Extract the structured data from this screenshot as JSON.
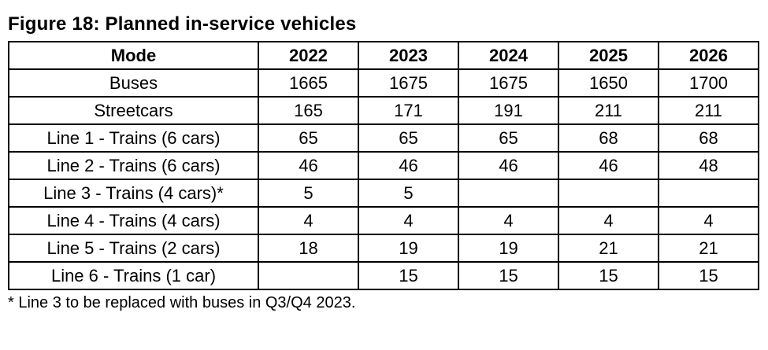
{
  "title": "Figure 18: Planned in-service vehicles",
  "table": {
    "columns": [
      "Mode",
      "2022",
      "2023",
      "2024",
      "2025",
      "2026"
    ],
    "rows": [
      {
        "mode": "Buses",
        "values": [
          "1665",
          "1675",
          "1675",
          "1650",
          "1700"
        ]
      },
      {
        "mode": "Streetcars",
        "values": [
          "165",
          "171",
          "191",
          "211",
          "211"
        ]
      },
      {
        "mode": "Line 1 - Trains (6 cars)",
        "values": [
          "65",
          "65",
          "65",
          "68",
          "68"
        ]
      },
      {
        "mode": "Line 2 - Trains (6 cars)",
        "values": [
          "46",
          "46",
          "46",
          "46",
          "48"
        ]
      },
      {
        "mode": "Line 3 - Trains (4 cars)*",
        "values": [
          "5",
          "5",
          "",
          "",
          ""
        ]
      },
      {
        "mode": "Line 4 - Trains (4 cars)",
        "values": [
          "4",
          "4",
          "4",
          "4",
          "4"
        ]
      },
      {
        "mode": "Line 5 - Trains (2 cars)",
        "values": [
          "18",
          "19",
          "19",
          "21",
          "21"
        ]
      },
      {
        "mode": "Line 6 - Trains (1 car)",
        "values": [
          "",
          "15",
          "15",
          "15",
          "15"
        ]
      }
    ]
  },
  "footnote": "* Line 3 to be replaced with buses in Q3/Q4 2023.",
  "colors": {
    "text": "#000000",
    "border": "#000000",
    "background": "#ffffff"
  }
}
